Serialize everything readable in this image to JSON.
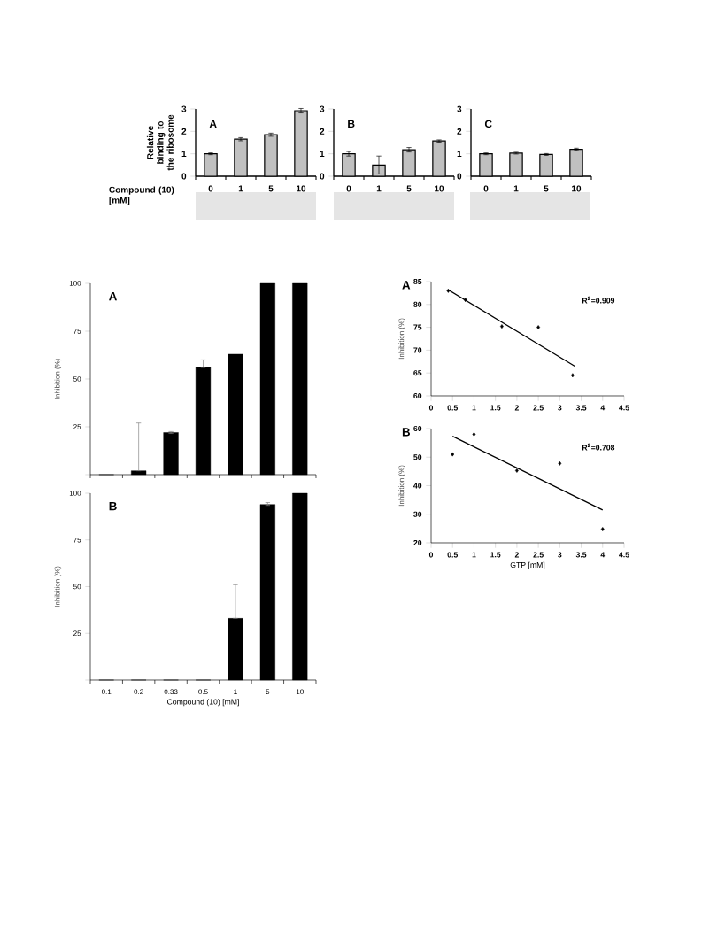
{
  "chart_data": [
    {
      "type": "bar",
      "title": "A",
      "ylabel": "Relative binding to the ribosome",
      "xlabel": "Compound (10) [mM]",
      "categories": [
        "0",
        "1",
        "5",
        "10"
      ],
      "values": [
        1.0,
        1.65,
        1.85,
        2.92
      ],
      "errors": [
        0.04,
        0.07,
        0.07,
        0.1
      ],
      "color": "#c0c0c0",
      "ylim": [
        0,
        3
      ],
      "yticks": [
        0,
        1,
        2,
        3
      ]
    },
    {
      "type": "bar",
      "title": "B",
      "categories": [
        "0",
        "1",
        "5",
        "10"
      ],
      "values": [
        1.0,
        0.5,
        1.18,
        1.57
      ],
      "errors": [
        0.1,
        0.4,
        0.1,
        0.05
      ],
      "color": "#c0c0c0",
      "ylim": [
        0,
        3
      ],
      "yticks": [
        0,
        1,
        2,
        3
      ]
    },
    {
      "type": "bar",
      "title": "C",
      "categories": [
        "0",
        "1",
        "5",
        "10"
      ],
      "values": [
        1.0,
        1.03,
        0.97,
        1.2
      ],
      "errors": [
        0.04,
        0.04,
        0.04,
        0.05
      ],
      "color": "#c0c0c0",
      "ylim": [
        0,
        3
      ],
      "yticks": [
        0,
        1,
        2,
        3
      ]
    },
    {
      "type": "bar",
      "title": "A",
      "ylabel": "Inhibition (%)",
      "categories": [
        "0.1",
        "0.2",
        "0.33",
        "0.5",
        "1",
        "5",
        "10"
      ],
      "values": [
        0,
        2,
        22,
        56,
        63,
        100,
        100
      ],
      "errors": [
        null,
        [
          2,
          27
        ],
        [
          21.5,
          22.5
        ],
        [
          56,
          60
        ],
        null,
        null,
        null
      ],
      "color": "#000000",
      "ylim": [
        0,
        100
      ],
      "yticks": [
        {
          "value": 0,
          "label": null
        },
        25,
        50,
        75,
        100
      ],
      "tick_labels": "y"
    },
    {
      "type": "bar",
      "title": "B",
      "ylabel": "Inhibition (%)",
      "xlabel": "Compound (10) [mM]",
      "categories": [
        "0.1",
        "0.2",
        "0.33",
        "0.5",
        "1",
        "5",
        "10"
      ],
      "values": [
        0,
        0,
        0,
        0,
        33,
        94,
        100
      ],
      "errors": [
        null,
        null,
        null,
        null,
        [
          33,
          51
        ],
        [
          93.5,
          95
        ],
        null
      ],
      "color": "#000000",
      "ylim": [
        0,
        100
      ],
      "yticks": [
        {
          "value": 0,
          "label": null
        },
        25,
        50,
        75,
        100
      ]
    },
    {
      "type": "scatter",
      "title": "A",
      "ylabel": "Inhibition (%)",
      "annotations": [
        "R$^{2}$=0.909"
      ],
      "xlim": [
        0,
        4.5
      ],
      "xticks": [
        0,
        0.5,
        1,
        1.5,
        2,
        2.5,
        3,
        3.5,
        4,
        4.5
      ],
      "ylim": [
        60,
        85
      ],
      "yticks": [
        60,
        65,
        70,
        75,
        80,
        85
      ],
      "series": [
        {
          "type": "scatter",
          "color": "#000000",
          "marker": "diamond",
          "x": [
            0.4,
            0.8,
            1.65,
            2.5,
            3.3
          ],
          "values": [
            83,
            81,
            75.2,
            75,
            64.5
          ]
        },
        {
          "type": "line",
          "color": "#000000",
          "marker": "none",
          "x": [
            0.4,
            3.35
          ],
          "values": [
            83.2,
            66.5
          ]
        }
      ]
    },
    {
      "type": "scatter",
      "title": "B",
      "ylabel": "Inhibition (%)",
      "xlabel": "GTP [mM]",
      "annotations": [
        "R$^{2}$=0.708"
      ],
      "xlim": [
        0,
        4.5
      ],
      "xticks": [
        0,
        0.5,
        1,
        1.5,
        2,
        2.5,
        3,
        3.5,
        4,
        4.5
      ],
      "ylim": [
        20,
        60
      ],
      "yticks": [
        20,
        30,
        40,
        50,
        60
      ],
      "series": [
        {
          "type": "scatter",
          "color": "#000000",
          "marker": "diamond",
          "x": [
            0.5,
            1,
            2,
            3,
            4
          ],
          "values": [
            51,
            58,
            45.3,
            47.8,
            24.8
          ]
        },
        {
          "type": "line",
          "color": "#000000",
          "marker": "none",
          "x": [
            0.5,
            4
          ],
          "values": [
            57.3,
            31.5
          ]
        }
      ]
    }
  ]
}
